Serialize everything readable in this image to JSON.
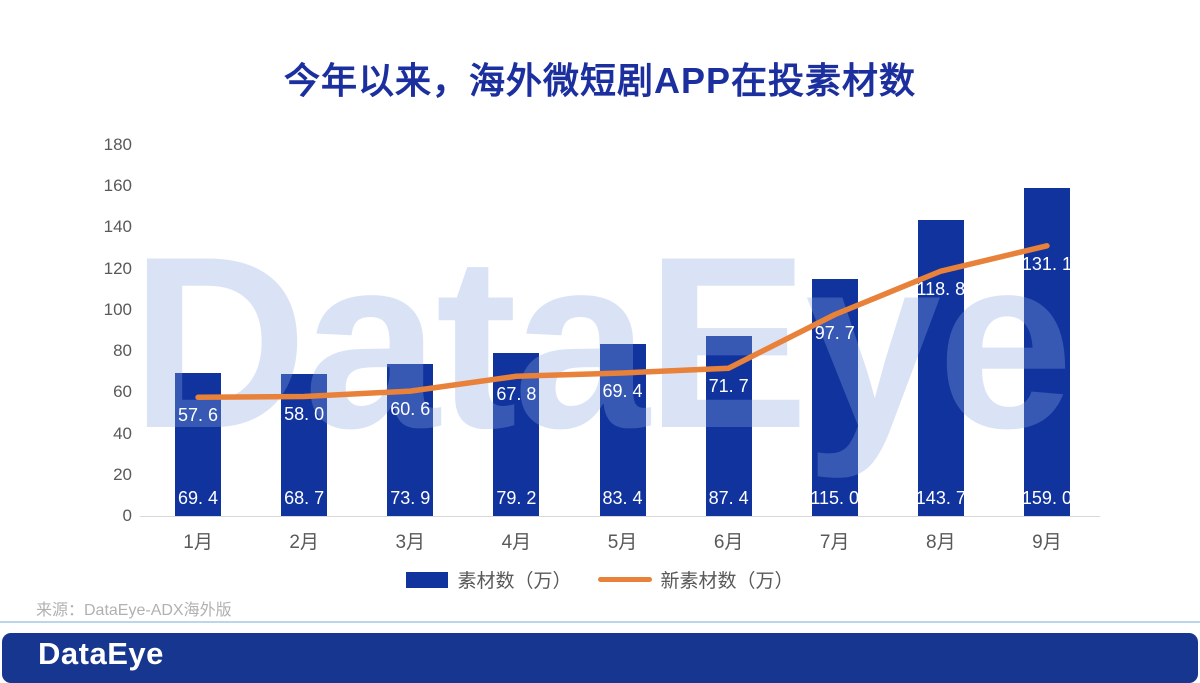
{
  "title": "今年以来，海外微短剧APP在投素材数",
  "watermark": "DataEye",
  "source": "来源：DataEye-ADX海外版",
  "footer": {
    "logo": "DataEye"
  },
  "colors": {
    "title": "#1c2f9e",
    "bar": "#10339e",
    "line": "#e8813a",
    "axis_text": "#595959",
    "footer_bg": "#16368f"
  },
  "chart_data": {
    "type": "bar",
    "title": "今年以来，海外微短剧APP在投素材数",
    "categories": [
      "1月",
      "2月",
      "3月",
      "4月",
      "5月",
      "6月",
      "7月",
      "8月",
      "9月"
    ],
    "series": [
      {
        "name": "素材数（万）",
        "type": "bar",
        "color": "#10339e",
        "values": [
          69.4,
          68.7,
          73.9,
          79.2,
          83.4,
          87.4,
          115.0,
          143.7,
          159.0
        ],
        "labels": [
          "69. 4",
          "68. 7",
          "73. 9",
          "79. 2",
          "83. 4",
          "87. 4",
          "115. 0",
          "143. 7",
          "159. 0"
        ]
      },
      {
        "name": "新素材数（万）",
        "type": "line",
        "color": "#e8813a",
        "values": [
          57.6,
          58.0,
          60.6,
          67.8,
          69.4,
          71.7,
          97.7,
          118.8,
          131.1
        ],
        "labels": [
          "57. 6",
          "58. 0",
          "60. 6",
          "67. 8",
          "69. 4",
          "71. 7",
          "97. 7",
          "118. 8",
          "131. 1"
        ]
      }
    ],
    "xlabel": "",
    "ylabel": "",
    "ylim": [
      0,
      180
    ],
    "yticks": [
      0,
      20,
      40,
      60,
      80,
      100,
      120,
      140,
      160,
      180
    ],
    "grid": false,
    "legend_position": "bottom"
  }
}
